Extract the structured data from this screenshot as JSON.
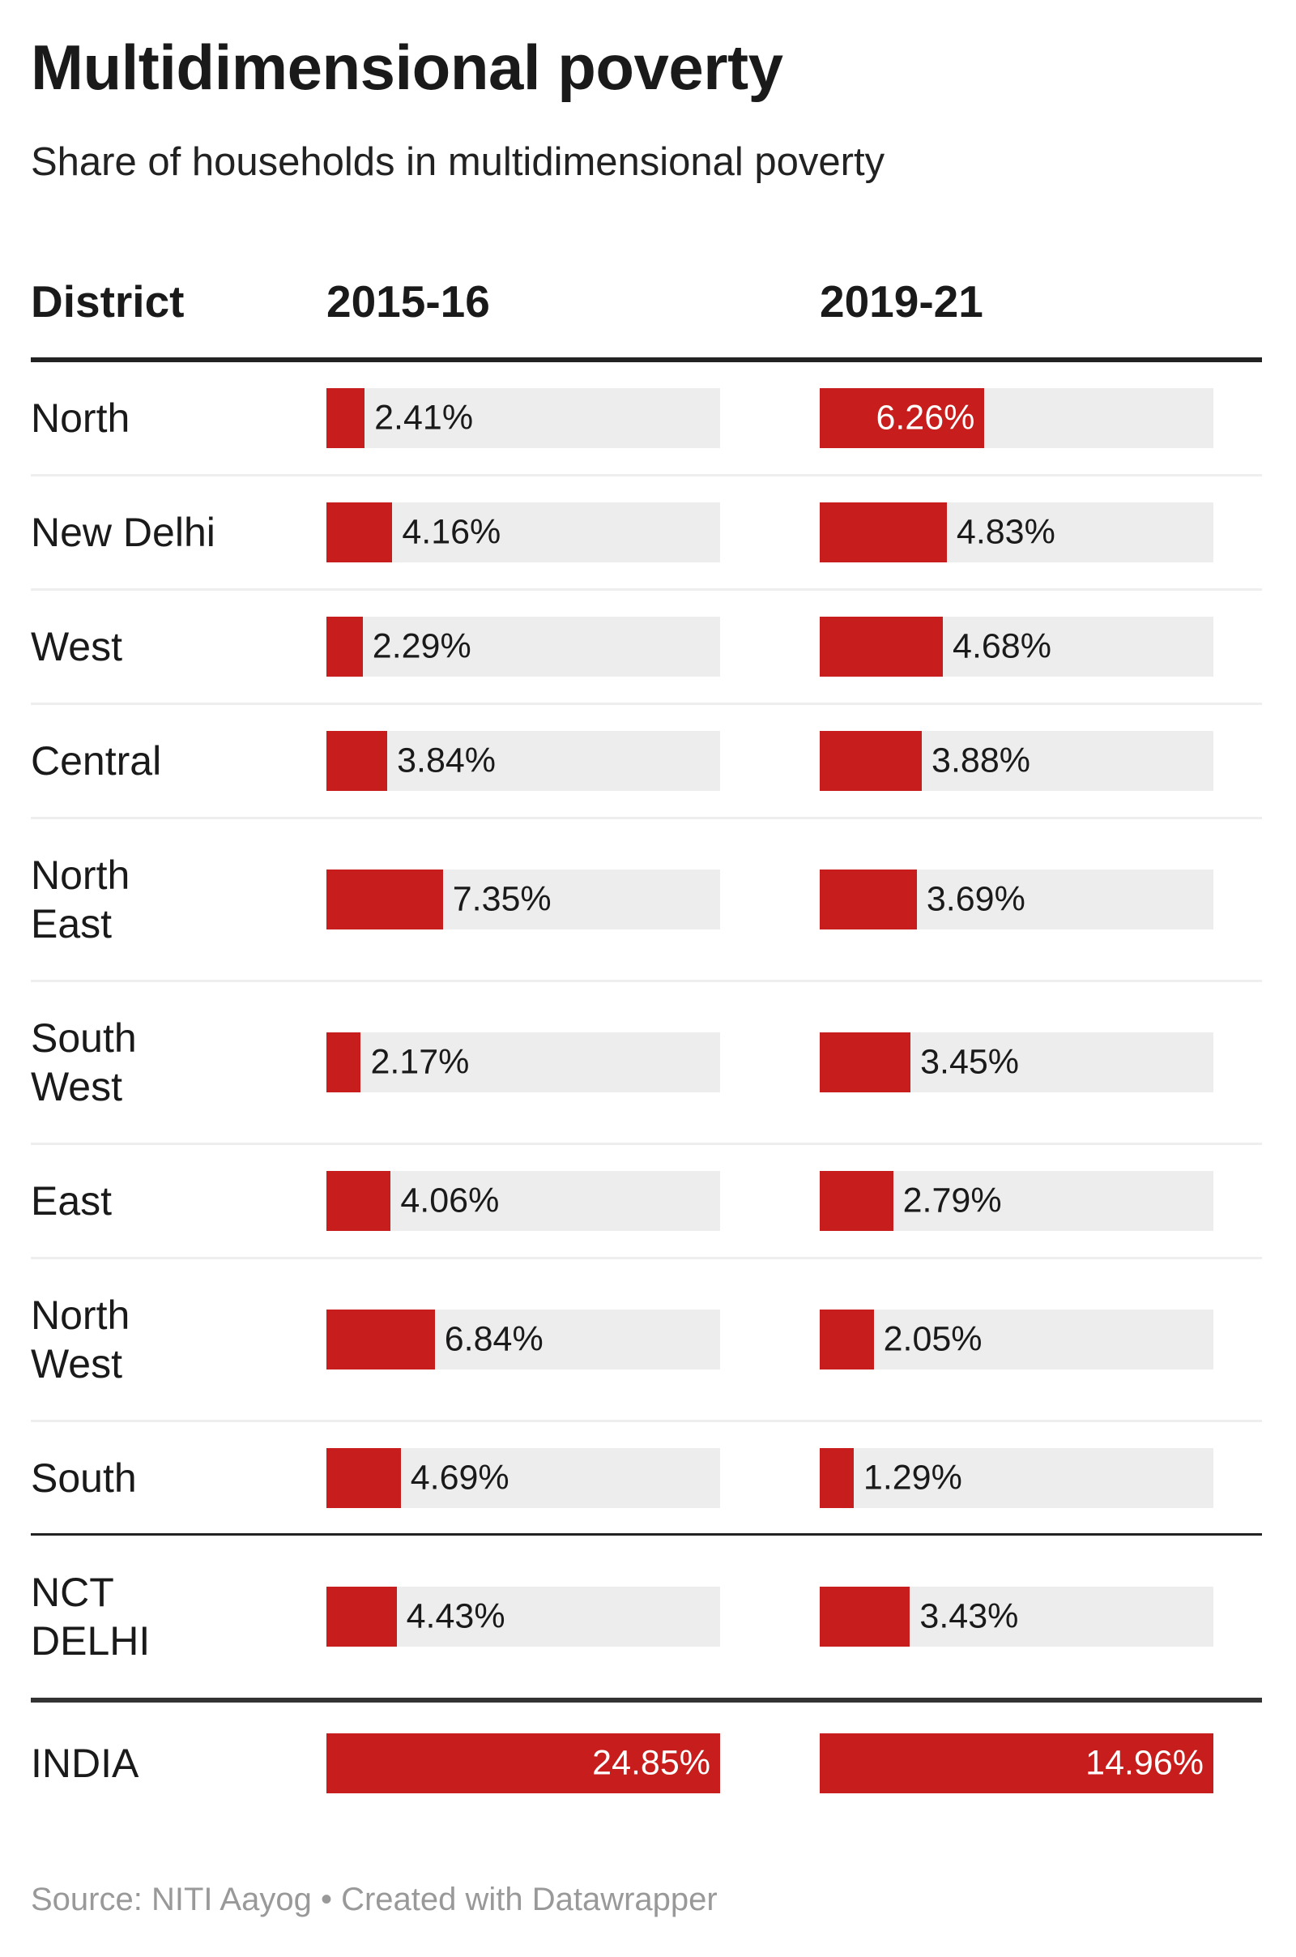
{
  "title": "Multidimensional poverty",
  "subtitle": "Share of households in multidimensional poverty",
  "source": "Source: NITI Aayog • Created with Datawrapper",
  "colors": {
    "bar": "#c71e1d",
    "track": "#ededed"
  },
  "chart_data": {
    "type": "table",
    "title": "Multidimensional poverty",
    "subtitle": "Share of households in multidimensional poverty",
    "columns": [
      "District",
      "2015-16",
      "2019-21"
    ],
    "unit": "%",
    "scale_max": {
      "2015-16": 24.85,
      "2019-21": 14.96
    },
    "rows": [
      {
        "district": "North",
        "v2015": 2.41,
        "v2019": 6.26,
        "l2015": "2.41%",
        "l2019": "6.26%"
      },
      {
        "district": "New Delhi",
        "v2015": 4.16,
        "v2019": 4.83,
        "l2015": "4.16%",
        "l2019": "4.83%"
      },
      {
        "district": "West",
        "v2015": 2.29,
        "v2019": 4.68,
        "l2015": "2.29%",
        "l2019": "4.68%"
      },
      {
        "district": "Central",
        "v2015": 3.84,
        "v2019": 3.88,
        "l2015": "3.84%",
        "l2019": "3.88%"
      },
      {
        "district": "North East",
        "v2015": 7.35,
        "v2019": 3.69,
        "l2015": "7.35%",
        "l2019": "3.69%"
      },
      {
        "district": "South West",
        "v2015": 2.17,
        "v2019": 3.45,
        "l2015": "2.17%",
        "l2019": "3.45%"
      },
      {
        "district": "East",
        "v2015": 4.06,
        "v2019": 2.79,
        "l2015": "4.06%",
        "l2019": "2.79%"
      },
      {
        "district": "North West",
        "v2015": 6.84,
        "v2019": 2.05,
        "l2015": "6.84%",
        "l2019": "2.05%"
      },
      {
        "district": "South",
        "v2015": 4.69,
        "v2019": 1.29,
        "l2015": "4.69%",
        "l2019": "1.29%"
      },
      {
        "district": "NCT DELHI",
        "v2015": 4.43,
        "v2019": 3.43,
        "l2015": "4.43%",
        "l2019": "3.43%"
      },
      {
        "district": "INDIA",
        "v2015": 24.85,
        "v2019": 14.96,
        "l2015": "24.85%",
        "l2019": "14.96%"
      }
    ]
  }
}
